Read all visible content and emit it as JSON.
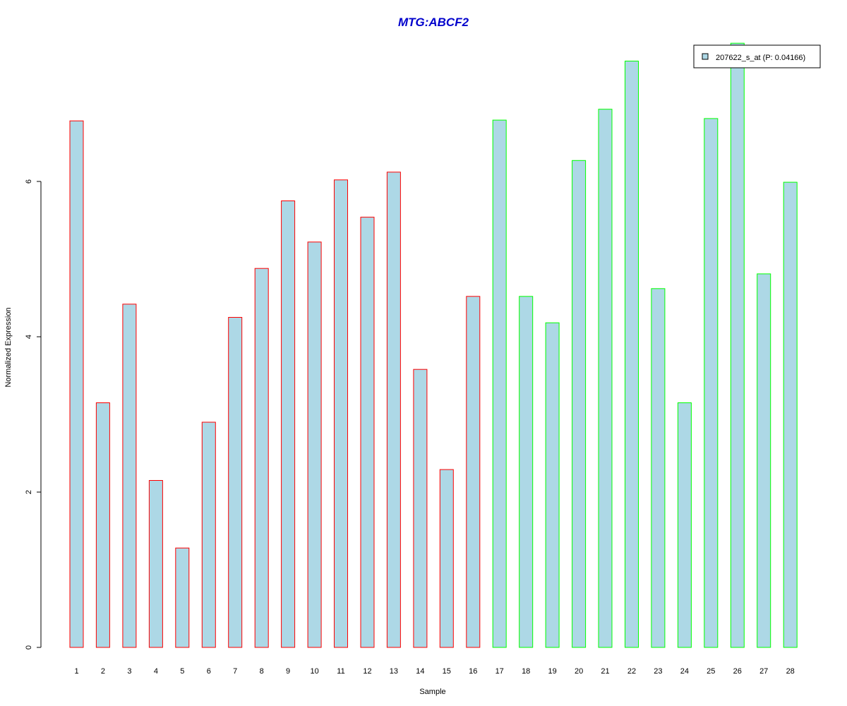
{
  "colors": {
    "title": "#0000cc",
    "bar_fill": "#add8e6",
    "group1_border": "#ff0000",
    "group2_border": "#00ff00",
    "axis": "#000000"
  },
  "chart_data": {
    "type": "bar",
    "title": "MTG:ABCF2",
    "xlabel": "Sample",
    "ylabel": "Normalized Expression",
    "categories": [
      "1",
      "2",
      "3",
      "4",
      "5",
      "6",
      "7",
      "8",
      "9",
      "10",
      "11",
      "12",
      "13",
      "14",
      "15",
      "16",
      "17",
      "18",
      "19",
      "20",
      "21",
      "22",
      "23",
      "24",
      "25",
      "26",
      "27",
      "28"
    ],
    "yticks": [
      "0",
      "2",
      "4",
      "6"
    ],
    "ylim": [
      0,
      7.8
    ],
    "grid": false,
    "legend": {
      "position": "top-right",
      "entries": [
        "207622_s_at (P: 0.04166)"
      ]
    },
    "series": [
      {
        "name": "207622_s_at (P: 0.04166)",
        "values": [
          6.78,
          3.15,
          4.42,
          2.15,
          1.28,
          2.9,
          4.25,
          4.88,
          5.75,
          5.22,
          6.02,
          5.54,
          6.12,
          3.58,
          2.29,
          4.52,
          6.79,
          4.52,
          4.18,
          6.27,
          6.93,
          7.55,
          4.62,
          3.15,
          6.81,
          7.78,
          4.81,
          5.99
        ],
        "border_group": [
          1,
          1,
          1,
          1,
          1,
          1,
          1,
          1,
          1,
          1,
          1,
          1,
          1,
          1,
          1,
          1,
          2,
          2,
          2,
          2,
          2,
          2,
          2,
          2,
          2,
          2,
          2,
          2
        ]
      }
    ]
  }
}
